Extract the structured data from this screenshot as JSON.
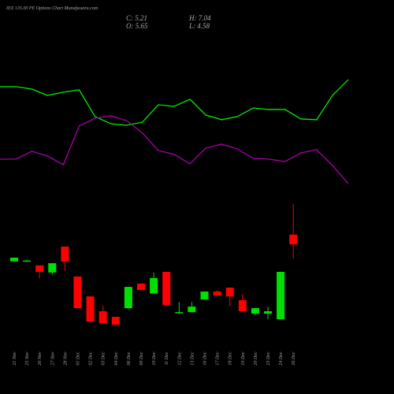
{
  "chart_data": [
    {
      "type": "candlestick",
      "title": "IEX 135.00 PE Options Chart Munafasutra.com",
      "info": [
        "C: 5.21",
        "H: 7.04",
        "O: 5.65",
        "L: 4.58"
      ],
      "categories": [
        "21 Nov",
        "25 Nov",
        "26 Nov",
        "27 Nov",
        "28 Nov",
        "01 Dec",
        "02 Dec",
        "03 Dec",
        "04 Dec",
        "06 Dec",
        "09 Dec",
        "10 Dec",
        "11 Dec",
        "12 Dec",
        "13 Dec",
        "16 Dec",
        "17 Dec",
        "18 Dec",
        "19 Dec",
        "20 Dec",
        "23 Dec",
        "24 Dec",
        "26 Dec"
      ],
      "open": [
        4.44,
        4.46,
        4.26,
        3.94,
        5.11,
        3.76,
        2.86,
        2.19,
        1.94,
        2.33,
        3.44,
        2.99,
        3.97,
        2.13,
        2.15,
        2.72,
        3.08,
        3.26,
        2.69,
        2.08,
        2.08,
        1.83,
        5.65
      ],
      "high": [
        4.61,
        4.5,
        4.26,
        4.36,
        5.11,
        3.76,
        2.86,
        2.44,
        1.94,
        3.29,
        3.44,
        3.94,
        3.97,
        2.61,
        2.61,
        3.08,
        3.15,
        3.26,
        2.97,
        2.33,
        2.4,
        3.97,
        7.04
      ],
      "low": [
        4.44,
        4.44,
        3.69,
        3.86,
        4.01,
        2.33,
        1.72,
        1.65,
        1.58,
        2.3,
        3.15,
        2.99,
        2.47,
        2.08,
        2.15,
        2.72,
        2.9,
        2.4,
        2.19,
        2.01,
        1.83,
        1.83,
        4.58
      ],
      "close": [
        4.61,
        4.48,
        3.97,
        4.36,
        4.44,
        2.33,
        1.72,
        1.65,
        1.58,
        3.29,
        3.15,
        3.69,
        2.47,
        2.15,
        2.4,
        3.08,
        2.9,
        2.86,
        2.19,
        2.33,
        2.19,
        3.97,
        5.21
      ],
      "up_color": "#00e000",
      "down_color": "#ff0000",
      "ylim": [
        1.3,
        7.35
      ]
    },
    {
      "type": "line",
      "series": [
        {
          "color": "#00ee00",
          "values": [
            87.5,
            87.5,
            85.6,
            80.6,
            83.1,
            85,
            63.8,
            58.1,
            56.9,
            59.4,
            73.1,
            71.9,
            77.5,
            65,
            61.3,
            63.8,
            70.6,
            69.4,
            69.4,
            61.9,
            61.3,
            80.6,
            93.1
          ]
        },
        {
          "color": "#aa00aa",
          "values": [
            30,
            30,
            36.3,
            32.5,
            25.6,
            56.3,
            62.5,
            64.4,
            60.6,
            50.6,
            36.9,
            33.8,
            26.3,
            38.8,
            41.9,
            38.1,
            30.6,
            30,
            28.1,
            35,
            37.5,
            25,
            10.6
          ]
        }
      ],
      "ylim": [
        0,
        100
      ]
    }
  ]
}
